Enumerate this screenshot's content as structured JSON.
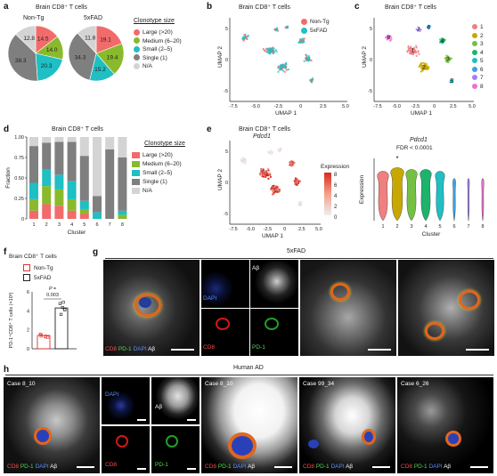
{
  "panel_letters": [
    "a",
    "b",
    "c",
    "d",
    "e",
    "f",
    "g",
    "h"
  ],
  "a": {
    "title": "Brain CD8⁺ T cells",
    "groups": [
      "Non-Tg",
      "5xFAD"
    ],
    "legend_title": "Clonotype size",
    "legend": [
      "Large (>20)",
      "Medium (6–20)",
      "Small (2–5)",
      "Single (1)",
      "N/A"
    ],
    "colors": [
      "#f26b6b",
      "#8aba2c",
      "#1fbfc4",
      "#7f7f7f",
      "#d4d4d4"
    ]
  },
  "b": {
    "title": "Brain CD8⁺ T cells",
    "legend": [
      "Non-Tg",
      "5xFAD"
    ],
    "colors": [
      "#f26b6b",
      "#1fbfc4"
    ]
  },
  "c": {
    "title": "Brain CD8⁺ T cells",
    "legend": [
      "1",
      "2",
      "3",
      "4",
      "5",
      "6",
      "7",
      "8"
    ],
    "colors": [
      "#f08080",
      "#c8a800",
      "#74c043",
      "#1db36c",
      "#1fbfc4",
      "#3fa0e6",
      "#a77ff0",
      "#f06fd0"
    ]
  },
  "umap": {
    "xlabel": "UMAP 1",
    "ylabel": "UMAP 2",
    "xticks": [
      "-7.5",
      "-5.0",
      "-2.5",
      "0",
      "2.5",
      "5.0"
    ],
    "yticks": [
      "5",
      "0",
      "-5"
    ]
  },
  "d": {
    "title": "Brain CD8⁺ T cells",
    "ylabel": "Fraction",
    "xlabel": "Cluster",
    "legend_title": "Clonotype size",
    "legend": [
      "Large (>20)",
      "Medium (6–20)",
      "Small (2–5)",
      "Single (1)",
      "N/A"
    ],
    "yticks": [
      "1.00",
      "0.75",
      "0.50",
      "0.25",
      "0"
    ]
  },
  "e": {
    "title": "Brain CD8⁺ T cells",
    "gene": "Pdcd1",
    "cbar_title": "Expression",
    "cbar_ticks": [
      "8",
      "6",
      "4",
      "2",
      "0"
    ],
    "violin_title": "Pdcd1",
    "violin_fdr": "FDR < 0.0001",
    "violin_ylabel": "Expression",
    "violin_xlabel": "Cluster",
    "star": "*"
  },
  "f": {
    "title": "Brain CD8⁺ T cells",
    "legend": [
      "Non-Tg",
      "5xFAD"
    ],
    "ylabel": "PD-1⁺CD8⁺ T cells (×10³)",
    "p_label": "P =",
    "p_value": "0.003",
    "yticks": [
      "6",
      "4",
      "2",
      "0"
    ]
  },
  "g": {
    "title": "5xFAD",
    "labels": {
      "dapi": "DAPI",
      "abeta": "Aβ",
      "cd8": "CD8",
      "pd1": "PD-1"
    },
    "merge_parts": [
      "CD8",
      "PD-1",
      "DAPI",
      "Aβ"
    ]
  },
  "h": {
    "title": "Human AD",
    "cases": [
      "Case 8_10",
      "Case 8_10",
      "Case 99_34",
      "Case 6_26"
    ],
    "labels": {
      "dapi": "DAPI",
      "abeta": "Aβ",
      "cd8": "CD8",
      "pd1": "PD-1"
    },
    "merge_parts": [
      "CD8",
      "PD-1",
      "DAPI",
      "Aβ"
    ]
  },
  "chart_data": [
    {
      "type": "pie",
      "title": "Brain CD8⁺ T cells",
      "subtitle": "Non-Tg",
      "categories": [
        "Large (>20)",
        "Medium (6–20)",
        "Small (2–5)",
        "Single (1)",
        "N/A"
      ],
      "values": [
        14.5,
        14.0,
        20.3,
        38.3,
        12.8
      ]
    },
    {
      "type": "pie",
      "subtitle": "5xFAD",
      "categories": [
        "Large (>20)",
        "Medium (6–20)",
        "Small (2–5)",
        "Single (1)",
        "N/A"
      ],
      "values": [
        19.1,
        19.4,
        15.2,
        34.3,
        11.8
      ]
    },
    {
      "type": "bar",
      "title": "Brain CD8⁺ T cells",
      "xlabel": "Cluster",
      "ylabel": "Fraction",
      "ylim": [
        0,
        1
      ],
      "categories": [
        "1",
        "2",
        "3",
        "4",
        "5",
        "6",
        "7",
        "8"
      ],
      "series": [
        {
          "name": "Large (>20)",
          "values": [
            0.1,
            0.18,
            0.16,
            0.1,
            0.06,
            0.0,
            0.0,
            0.0
          ]
        },
        {
          "name": "Medium (6–20)",
          "values": [
            0.14,
            0.22,
            0.2,
            0.14,
            0.06,
            0.0,
            0.0,
            0.05
          ]
        },
        {
          "name": "Small (2–5)",
          "values": [
            0.2,
            0.2,
            0.18,
            0.22,
            0.1,
            0.08,
            0.0,
            0.05
          ]
        },
        {
          "name": "Single (1)",
          "values": [
            0.45,
            0.33,
            0.4,
            0.48,
            0.55,
            0.2,
            0.85,
            0.65
          ]
        },
        {
          "name": "N/A",
          "values": [
            0.11,
            0.07,
            0.06,
            0.06,
            0.23,
            0.72,
            0.15,
            0.25
          ]
        }
      ]
    },
    {
      "type": "bar",
      "title": "Brain CD8⁺ T cells",
      "ylabel": "PD-1⁺CD8⁺ T cells (×10³)",
      "categories": [
        "Non-Tg",
        "5xFAD"
      ],
      "values": [
        1.4,
        4.3
      ],
      "ylim": [
        0,
        6
      ]
    }
  ]
}
